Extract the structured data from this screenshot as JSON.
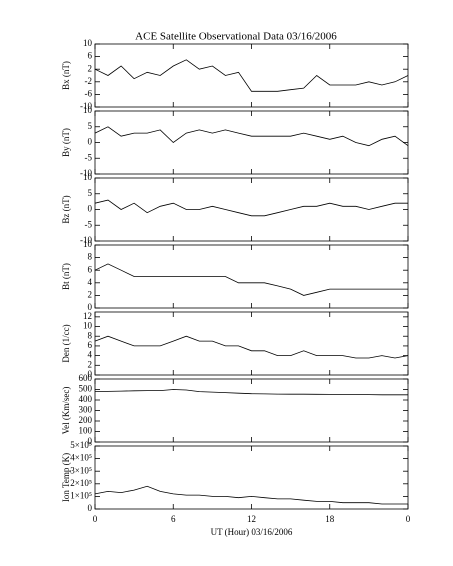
{
  "title": "ACE Satellite Observational Data   03/16/2006",
  "chart_data": [
    {
      "type": "line",
      "ylabel": "Bx (nT)",
      "x": [
        0,
        1,
        2,
        3,
        4,
        5,
        6,
        7,
        8,
        9,
        10,
        11,
        12,
        13,
        14,
        15,
        16,
        17,
        18,
        19,
        20,
        21,
        22,
        23,
        24
      ],
      "values": [
        2,
        0,
        3,
        -1,
        1,
        0,
        3,
        5,
        2,
        3,
        0,
        1,
        -5,
        -5,
        -5,
        -4.5,
        -4,
        0,
        -3,
        -3,
        -3,
        -2,
        -3,
        -2,
        0
      ],
      "xlim": [
        0,
        24
      ],
      "ylim": [
        -10,
        10
      ],
      "yticks": [
        -10,
        -6,
        -2,
        2,
        6,
        10
      ],
      "xticks": [
        0,
        6,
        12,
        18,
        {
          "value": 24,
          "label": "0"
        }
      ],
      "color": "#000000"
    },
    {
      "type": "line",
      "ylabel": "By (nT)",
      "x": [
        0,
        1,
        2,
        3,
        4,
        5,
        6,
        7,
        8,
        9,
        10,
        11,
        12,
        13,
        14,
        15,
        16,
        17,
        18,
        19,
        20,
        21,
        22,
        23,
        24
      ],
      "values": [
        3,
        5,
        2,
        3,
        3,
        4,
        0,
        3,
        4,
        3,
        4,
        3,
        2,
        2,
        2,
        2,
        3,
        2,
        1,
        2,
        0,
        -1,
        1,
        2,
        -1
      ],
      "xlim": [
        0,
        24
      ],
      "ylim": [
        -10,
        10
      ],
      "yticks": [
        -10,
        -5,
        0,
        5,
        10
      ],
      "xticks": [
        0,
        6,
        12,
        18,
        {
          "value": 24,
          "label": "0"
        }
      ],
      "color": "#000000"
    },
    {
      "type": "line",
      "ylabel": "Bz (nT)",
      "x": [
        0,
        1,
        2,
        3,
        4,
        5,
        6,
        7,
        8,
        9,
        10,
        11,
        12,
        13,
        14,
        15,
        16,
        17,
        18,
        19,
        20,
        21,
        22,
        23,
        24
      ],
      "values": [
        2,
        3,
        0,
        2,
        -1,
        1,
        2,
        0,
        0,
        1,
        0,
        -1,
        -2,
        -2,
        -1,
        0,
        1,
        1,
        2,
        1,
        1,
        0,
        1,
        2,
        2
      ],
      "xlim": [
        0,
        24
      ],
      "ylim": [
        -10,
        10
      ],
      "yticks": [
        -10,
        -5,
        0,
        5,
        10
      ],
      "xticks": [
        0,
        6,
        12,
        18,
        {
          "value": 24,
          "label": "0"
        }
      ],
      "color": "#000000"
    },
    {
      "type": "line",
      "ylabel": "Bt (nT)",
      "x": [
        0,
        1,
        2,
        3,
        4,
        5,
        6,
        7,
        8,
        9,
        10,
        11,
        12,
        13,
        14,
        15,
        16,
        17,
        18,
        19,
        20,
        21,
        22,
        23,
        24
      ],
      "values": [
        6,
        7,
        6,
        5,
        5,
        5,
        5,
        5,
        5,
        5,
        5,
        4,
        4,
        4,
        3.5,
        3,
        2,
        2.5,
        3,
        3,
        3,
        3,
        3,
        3,
        3
      ],
      "xlim": [
        0,
        24
      ],
      "ylim": [
        0,
        10
      ],
      "yticks": [
        0,
        2,
        4,
        6,
        8,
        10
      ],
      "xticks": [
        0,
        6,
        12,
        18,
        {
          "value": 24,
          "label": "0"
        }
      ],
      "color": "#000000"
    },
    {
      "type": "line",
      "ylabel": "Den (1/cc)",
      "x": [
        0,
        1,
        2,
        3,
        4,
        5,
        6,
        7,
        8,
        9,
        10,
        11,
        12,
        13,
        14,
        15,
        16,
        17,
        18,
        19,
        20,
        21,
        22,
        23,
        24
      ],
      "values": [
        7,
        8,
        7,
        6,
        6,
        6,
        7,
        8,
        7,
        7,
        6,
        6,
        5,
        5,
        4,
        4,
        5,
        4,
        4,
        4,
        3.5,
        3.5,
        4,
        3.5,
        4
      ],
      "xlim": [
        0,
        24
      ],
      "ylim": [
        0,
        13
      ],
      "yticks": [
        0,
        2,
        4,
        6,
        8,
        10,
        12
      ],
      "xticks": [
        0,
        6,
        12,
        18,
        {
          "value": 24,
          "label": "0"
        }
      ],
      "color": "#000000"
    },
    {
      "type": "line",
      "ylabel": "Vel (Km/sec)",
      "x": [
        0,
        1,
        2,
        3,
        4,
        5,
        6,
        7,
        8,
        9,
        10,
        11,
        12,
        13,
        14,
        15,
        16,
        17,
        18,
        19,
        20,
        21,
        22,
        23,
        24
      ],
      "values": [
        480,
        482,
        485,
        488,
        490,
        490,
        500,
        495,
        480,
        475,
        470,
        465,
        460,
        458,
        456,
        455,
        455,
        454,
        453,
        452,
        452,
        451,
        450,
        450,
        450
      ],
      "xlim": [
        0,
        24
      ],
      "ylim": [
        0,
        600
      ],
      "yticks": [
        0,
        100,
        200,
        300,
        400,
        500,
        600
      ],
      "xticks": [
        0,
        6,
        12,
        18,
        {
          "value": 24,
          "label": "0"
        }
      ],
      "color": "#000000"
    },
    {
      "type": "line",
      "ylabel": "Ion Temp (K)",
      "xlabel": "UT (Hour)   03/16/2006",
      "x": [
        0,
        1,
        2,
        3,
        4,
        5,
        6,
        7,
        8,
        9,
        10,
        11,
        12,
        13,
        14,
        15,
        16,
        17,
        18,
        19,
        20,
        21,
        22,
        23,
        24
      ],
      "values": [
        120000,
        140000,
        130000,
        150000,
        180000,
        140000,
        120000,
        110000,
        110000,
        100000,
        100000,
        90000,
        100000,
        90000,
        80000,
        80000,
        70000,
        60000,
        60000,
        50000,
        50000,
        50000,
        40000,
        40000,
        40000
      ],
      "xlim": [
        0,
        24
      ],
      "ylim": [
        0,
        500000
      ],
      "yticks": [
        0,
        {
          "value": 100000,
          "label": "1×10⁵"
        },
        {
          "value": 200000,
          "label": "2×10⁵"
        },
        {
          "value": 300000,
          "label": "3×10⁵"
        },
        {
          "value": 400000,
          "label": "4×10⁵"
        },
        {
          "value": 500000,
          "label": "5×10⁵"
        }
      ],
      "xticks": [
        0,
        6,
        12,
        18,
        {
          "value": 24,
          "label": "0"
        }
      ],
      "color": "#000000"
    }
  ]
}
